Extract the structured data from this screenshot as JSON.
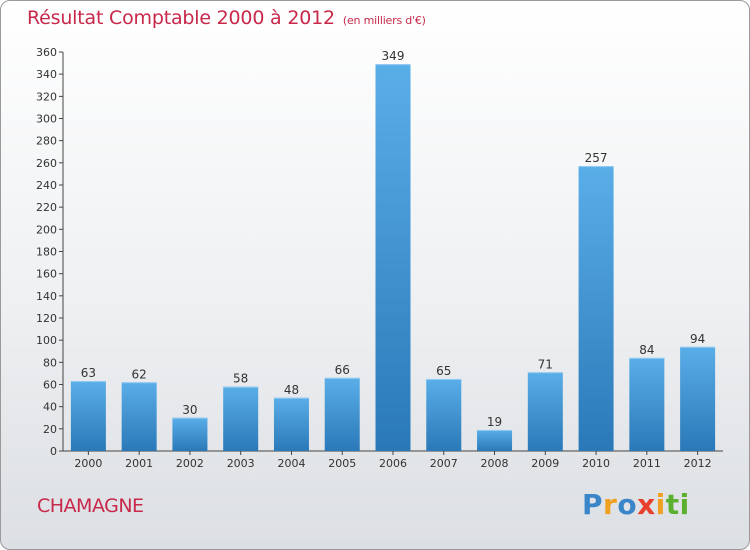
{
  "title": "Résultat Comptable 2000 à 2012",
  "subtitle": "(en milliers d'€)",
  "commune": "CHAMAGNE",
  "logo": {
    "letters": [
      "P",
      "r",
      "o",
      "x",
      "i",
      "t",
      "i"
    ]
  },
  "colors": {
    "title": "#c8284a",
    "bar_light": "#5aaee8",
    "bar_dark": "#2a78b8",
    "logo": [
      "#3a86c8",
      "#f0a020",
      "#3a86c8",
      "#e8402c",
      "#f0a020",
      "#5cb030",
      "#5cb030"
    ]
  },
  "chart_data": {
    "type": "bar",
    "title": "Résultat Comptable 2000 à 2012",
    "xlabel": "",
    "ylabel": "",
    "categories": [
      "2000",
      "2001",
      "2002",
      "2003",
      "2004",
      "2005",
      "2006",
      "2007",
      "2008",
      "2009",
      "2010",
      "2011",
      "2012"
    ],
    "values": [
      63,
      62,
      30,
      58,
      48,
      66,
      349,
      65,
      19,
      71,
      257,
      84,
      94
    ],
    "ylim": [
      0,
      360
    ],
    "yticks": [
      0,
      20,
      40,
      60,
      80,
      100,
      120,
      140,
      160,
      180,
      200,
      220,
      240,
      260,
      280,
      300,
      320,
      340,
      360
    ],
    "grid": false,
    "legend": "none"
  }
}
